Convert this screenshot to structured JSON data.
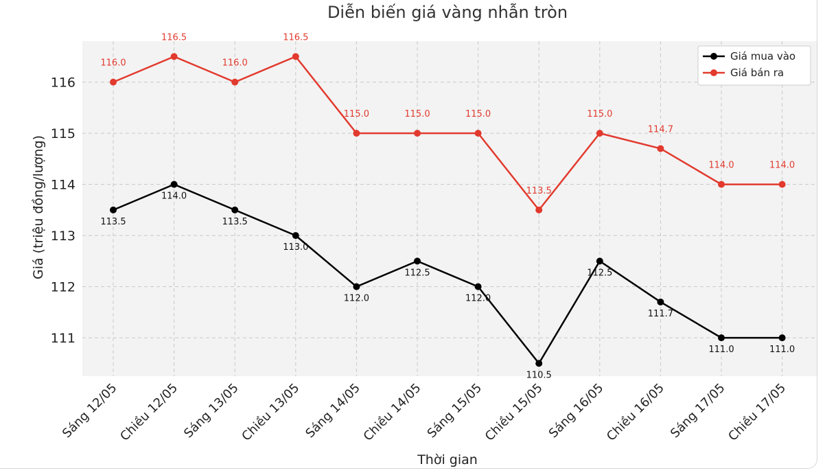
{
  "chart_data": {
    "type": "line",
    "title": "Diễn biến giá vàng nhẫn tròn",
    "xlabel": "Thời gian",
    "ylabel": "Giá (triệu đồng/lượng)",
    "categories": [
      "Sáng 12/05",
      "Chiều 12/05",
      "Sáng 13/05",
      "Chiều 13/05",
      "Sáng 14/05",
      "Chiều 14/05",
      "Sáng 15/05",
      "Chiều 15/05",
      "Sáng 16/05",
      "Chiều 16/05",
      "Sáng 17/05",
      "Chiều 17/05"
    ],
    "ylim": [
      110.25,
      116.8
    ],
    "yticks": [
      111,
      112,
      113,
      114,
      115,
      116
    ],
    "grid": true,
    "legend_position": "top-right",
    "series": [
      {
        "name": "Giá mua vào",
        "color": "#000000",
        "values": [
          113.5,
          114.0,
          113.5,
          113.0,
          112.0,
          112.5,
          112.0,
          110.5,
          112.5,
          111.7,
          111.0,
          111.0
        ],
        "labels": [
          "113.5",
          "114.0",
          "113.5",
          "113.0",
          "112.0",
          "112.5",
          "112.0",
          "110.5",
          "112.5",
          "111.7",
          "111.0",
          "111.0"
        ]
      },
      {
        "name": "Giá bán ra",
        "color": "#e23a2e",
        "values": [
          116.0,
          116.5,
          116.0,
          116.5,
          115.0,
          115.0,
          115.0,
          113.5,
          115.0,
          114.7,
          114.0,
          114.0
        ],
        "labels": [
          "116.0",
          "116.5",
          "116.0",
          "116.5",
          "115.0",
          "115.0",
          "115.0",
          "113.5",
          "115.0",
          "114.7",
          "114.0",
          "114.0"
        ]
      }
    ]
  }
}
